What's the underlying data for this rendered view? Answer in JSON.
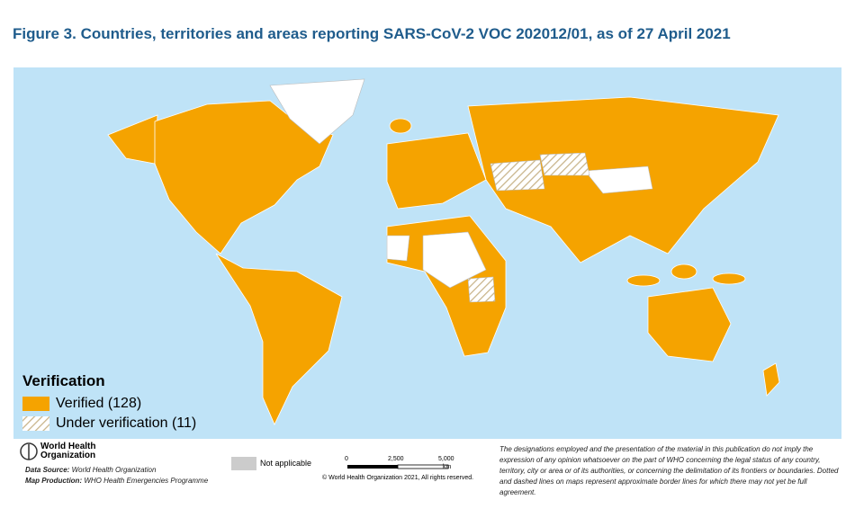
{
  "title": "Figure 3. Countries, territories and areas reporting SARS-CoV-2 VOC 202012/01, as of 27 April 2021",
  "legend": {
    "title": "Verification",
    "items": [
      {
        "label": "Verified (128)"
      },
      {
        "label": "Under verification (11)"
      }
    ]
  },
  "footer": {
    "organization": [
      "World Health",
      "Organization"
    ],
    "data_source": {
      "label": "Data Source:",
      "text": "World Health Organization"
    },
    "map_production": {
      "label": "Map Production:",
      "text": "WHO Health Emergencies Programme"
    },
    "not_applicable": "Not applicable",
    "scale": {
      "ticks": [
        "0",
        "2,500",
        "5,000"
      ],
      "unit": "km"
    },
    "copyright": "© World Health Organization 2021, All rights reserved.",
    "disclaimer": "The designations employed and the presentation of the material in this publication do not imply the expression of any opinion whatsoever on the part of WHO concerning the legal status of any country, territory, city or area or of its authorities, or concerning the delimitation of its frontiers or boundaries. Dotted and dashed lines on maps represent approximate border lines for which there may not yet be full agreement."
  }
}
